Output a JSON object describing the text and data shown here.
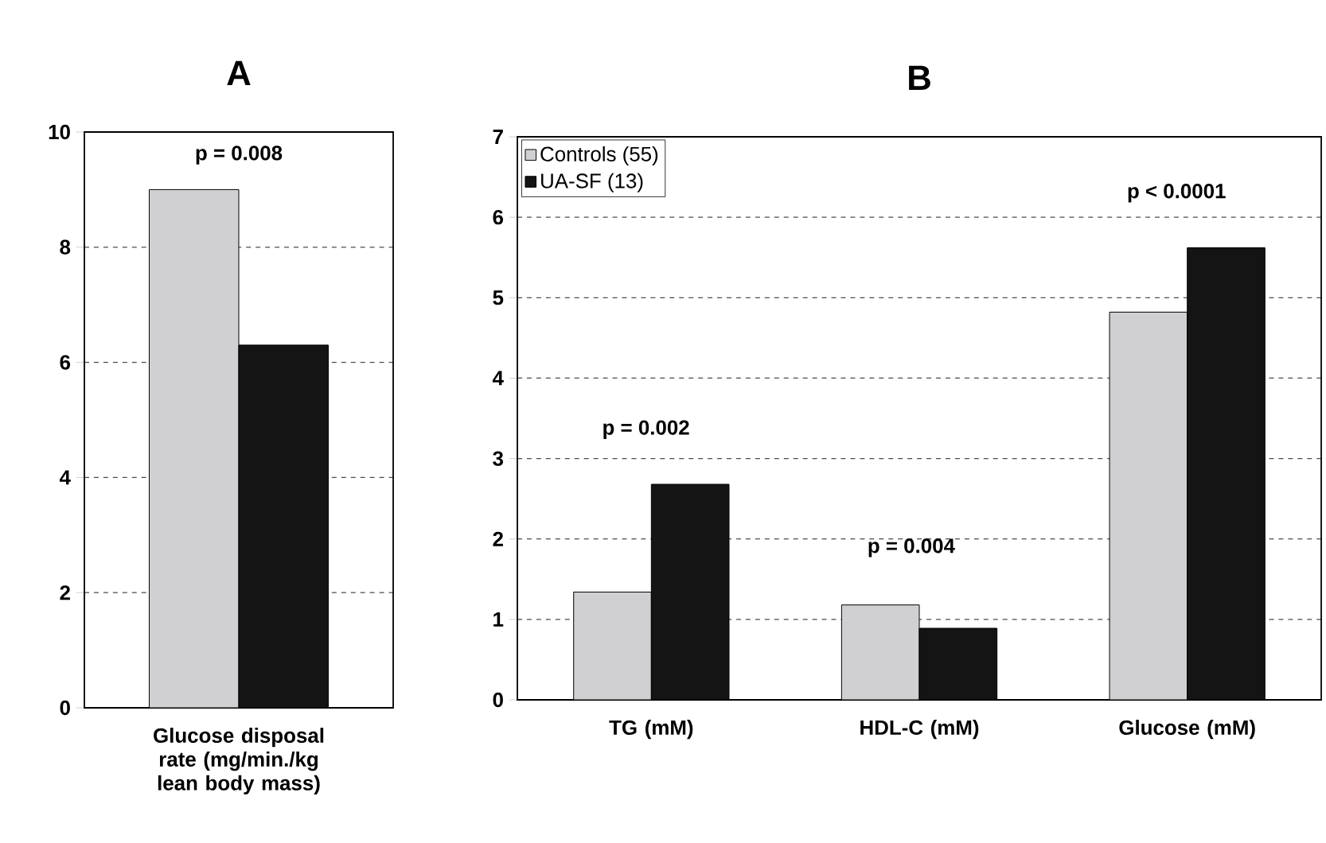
{
  "chart_data": [
    {
      "type": "bar",
      "title": "A",
      "categories": [
        "Glucose disposal rate (mg/min./kg lean body mass)"
      ],
      "series": [
        {
          "color": "#d0d0d2",
          "values": [
            9.0
          ]
        },
        {
          "color": "#141414",
          "values": [
            6.3
          ]
        }
      ],
      "ylim": [
        0,
        10
      ],
      "yticks": [
        0,
        2,
        4,
        6,
        8,
        10
      ],
      "grid": "y",
      "legend": false,
      "annotations": [
        "p = 0.008"
      ]
    },
    {
      "type": "bar",
      "title": "B",
      "categories": [
        "TG (mM)",
        "HDL-C (mM)",
        "Glucose (mM)"
      ],
      "series": [
        {
          "name": "Controls (55)",
          "color": "#d0d0d2",
          "values": [
            1.34,
            1.18,
            4.82
          ]
        },
        {
          "name": "UA-SF (13)",
          "color": "#141414",
          "values": [
            2.68,
            0.89,
            5.62
          ]
        }
      ],
      "ylim": [
        0,
        7
      ],
      "yticks": [
        0,
        1,
        2,
        3,
        4,
        5,
        6,
        7
      ],
      "grid": "y",
      "legend": "top left",
      "annotations": [
        "p = 0.002",
        "p = 0.004",
        "p < 0.0001"
      ]
    }
  ]
}
